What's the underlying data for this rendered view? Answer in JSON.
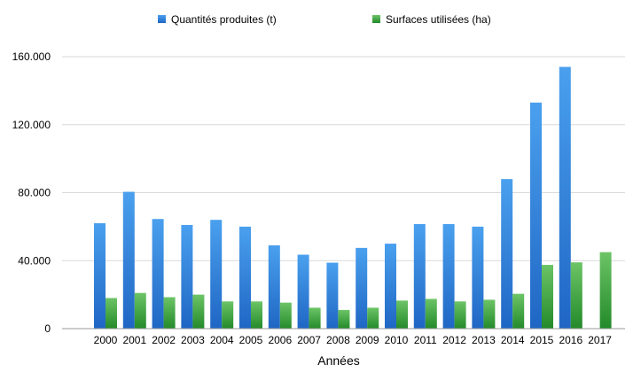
{
  "chart_data": {
    "type": "bar",
    "title": "",
    "xlabel": "Années",
    "ylabel": "",
    "categories": [
      "2000",
      "2001",
      "2002",
      "2003",
      "2004",
      "2005",
      "2006",
      "2007",
      "2008",
      "2009",
      "2010",
      "2011",
      "2012",
      "2013",
      "2014",
      "2015",
      "2016",
      "2017"
    ],
    "series": [
      {
        "name": "Quantités produites (t)",
        "color": "#2f7fd6",
        "values": [
          62000,
          80500,
          64500,
          61000,
          64000,
          60000,
          49000,
          43500,
          38800,
          47500,
          50000,
          61500,
          61500,
          60000,
          88000,
          133000,
          154000,
          null
        ]
      },
      {
        "name": "Surfaces utilisées (ha)",
        "color": "#3fa83a",
        "values": [
          18000,
          21000,
          18500,
          20000,
          16000,
          16000,
          15300,
          12300,
          11000,
          12300,
          16500,
          17500,
          16000,
          17000,
          20500,
          37500,
          39000,
          45000
        ]
      }
    ],
    "ylim": [
      0,
      160000
    ],
    "yticks": [
      0,
      40000,
      80000,
      120000,
      160000
    ],
    "ytick_labels": [
      "0",
      "40.000",
      "80.000",
      "120.000",
      "160.000"
    ],
    "grid": true,
    "legend_position": "top"
  }
}
